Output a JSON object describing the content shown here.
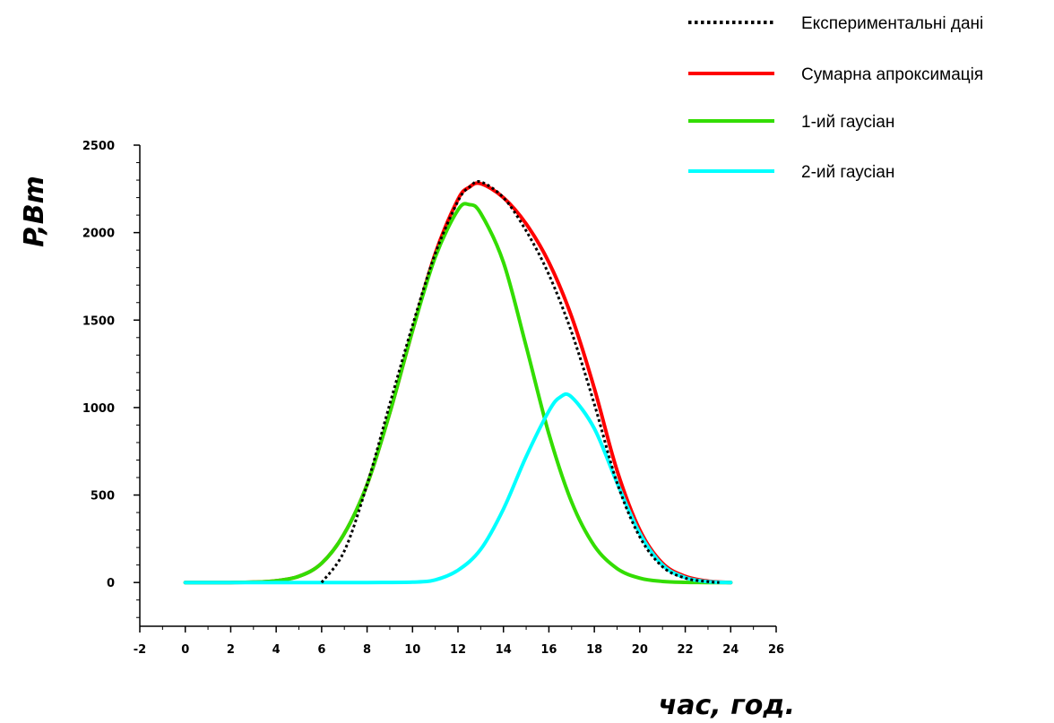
{
  "chart_data": {
    "type": "line",
    "title": "",
    "xlabel": "час, год.",
    "ylabel": "P,Bm",
    "xlim": [
      -2,
      26
    ],
    "ylim": [
      -250,
      2500
    ],
    "x_ticks": [
      "-2",
      "0",
      "2",
      "4",
      "6",
      "8",
      "10",
      "12",
      "14",
      "16",
      "18",
      "20",
      "22",
      "24",
      "26"
    ],
    "y_ticks": [
      "0",
      "500",
      "1000",
      "1500",
      "2000",
      "2500"
    ],
    "grid": false,
    "legend_position": "top-right",
    "series": [
      {
        "name": "Експериментальні дані",
        "color": "#000000",
        "style": "dotted",
        "x": [
          6,
          7,
          8,
          9,
          10,
          11,
          12,
          12.5,
          13,
          14,
          15,
          16,
          17,
          18,
          19,
          20,
          21,
          22,
          23,
          23.5
        ],
        "y": [
          0,
          180,
          560,
          1020,
          1470,
          1880,
          2180,
          2260,
          2290,
          2200,
          2010,
          1760,
          1430,
          1020,
          570,
          260,
          90,
          25,
          5,
          0
        ]
      },
      {
        "name": "Сумарна апроксимація",
        "color": "#ff0000",
        "style": "solid",
        "x": [
          0,
          2,
          3,
          4,
          5,
          6,
          7,
          8,
          9,
          10,
          11,
          12,
          12.5,
          13,
          14,
          15,
          16,
          17,
          18,
          19,
          20,
          21,
          22,
          23,
          24
        ],
        "y": [
          0,
          0,
          2,
          10,
          35,
          110,
          280,
          560,
          970,
          1440,
          1880,
          2190,
          2260,
          2280,
          2200,
          2050,
          1830,
          1520,
          1110,
          640,
          300,
          110,
          35,
          8,
          0
        ]
      },
      {
        "name": "1-ий гаусіан",
        "color": "#33dd00",
        "style": "solid",
        "x": [
          0,
          2,
          3,
          4,
          5,
          6,
          7,
          8,
          9,
          10,
          11,
          12,
          12.5,
          13,
          14,
          15,
          16,
          17,
          18,
          19,
          20,
          21,
          22,
          23,
          24
        ],
        "y": [
          0,
          0,
          2,
          10,
          35,
          110,
          280,
          560,
          970,
          1440,
          1860,
          2130,
          2160,
          2110,
          1830,
          1350,
          850,
          460,
          210,
          80,
          25,
          6,
          1,
          0,
          0
        ]
      },
      {
        "name": "2-ий гаусіан",
        "color": "#00ffff",
        "style": "solid",
        "x": [
          0,
          6,
          8,
          10,
          11,
          12,
          13,
          14,
          15,
          16,
          16.5,
          17,
          18,
          19,
          20,
          21,
          22,
          23,
          24
        ],
        "y": [
          0,
          0,
          0,
          2,
          15,
          70,
          190,
          420,
          720,
          980,
          1060,
          1060,
          880,
          570,
          280,
          100,
          28,
          5,
          0
        ]
      }
    ]
  }
}
